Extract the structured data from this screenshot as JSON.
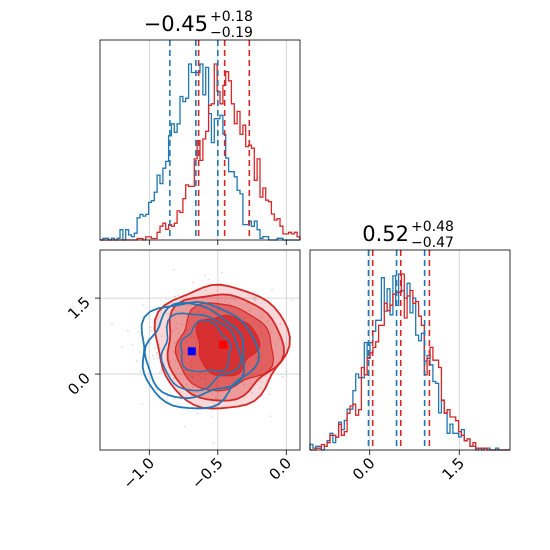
{
  "chart_data": {
    "type": "corner",
    "colors": {
      "blue": "#1f77b4",
      "red": "#d62728",
      "grid": "#cccccc",
      "marker_blue": "#0000ff",
      "marker_red": "#ff0000"
    },
    "grid": true,
    "titles": {
      "param1": {
        "median": "−0.45",
        "plus": "+0.18",
        "minus": "−0.19"
      },
      "param2": {
        "median": "0.52",
        "plus": "+0.48",
        "minus": "−0.47"
      }
    },
    "param1": {
      "xlim": [
        -1.36,
        0.1
      ],
      "ticks": [
        {
          "v": -1.0,
          "label": "−1.0"
        },
        {
          "v": -0.5,
          "label": "−0.5"
        },
        {
          "v": 0.0,
          "label": "0.0"
        }
      ],
      "blue_quantiles": [
        -0.85,
        -0.66,
        -0.5
      ],
      "red_quantiles": [
        -0.64,
        -0.45,
        -0.27
      ]
    },
    "param2": {
      "xlim": [
        -1.0,
        2.35
      ],
      "ticks": [
        {
          "v": 0.0,
          "label": "0.0"
        },
        {
          "v": 1.5,
          "label": "1.5"
        }
      ],
      "blue_quantiles": [
        -0.02,
        0.45,
        0.92
      ],
      "red_quantiles": [
        0.05,
        0.52,
        1.0
      ]
    },
    "scatter": {
      "xlim": [
        -1.36,
        0.1
      ],
      "ylim": [
        -1.5,
        2.45
      ],
      "yticks": [
        {
          "v": 1.5,
          "label": "1.5"
        },
        {
          "v": 0.0,
          "label": "0.0"
        }
      ],
      "blue_center": [
        -0.69,
        0.45
      ],
      "red_center": [
        -0.46,
        0.58
      ]
    }
  }
}
